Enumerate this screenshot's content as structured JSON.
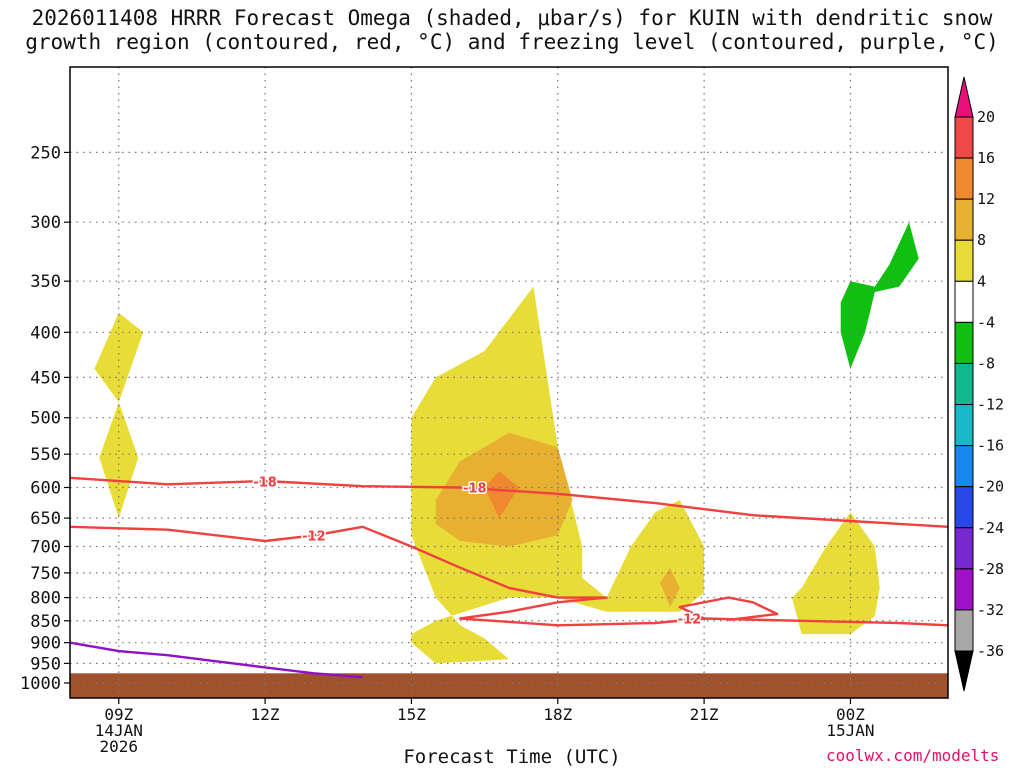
{
  "chart_data": {
    "type": "contour-cross-section",
    "title": {
      "line1": "2026011408 HRRR Forecast Omega (shaded, μbar/s) for KUIN with dendritic snow",
      "line2": "growth region (contoured, red, °C) and freezing level (contoured, purple, °C)"
    },
    "xlabel": "Forecast Time (UTC)",
    "credit": "coolwx.com/modelts",
    "x_ticks": [
      {
        "hour": 0,
        "label": "09Z",
        "sub1": "14JAN",
        "sub2": "2026"
      },
      {
        "hour": 3,
        "label": "12Z",
        "sub1": "",
        "sub2": ""
      },
      {
        "hour": 6,
        "label": "15Z",
        "sub1": "",
        "sub2": ""
      },
      {
        "hour": 9,
        "label": "18Z",
        "sub1": "",
        "sub2": ""
      },
      {
        "hour": 12,
        "label": "21Z",
        "sub1": "",
        "sub2": ""
      },
      {
        "hour": 15,
        "label": "00Z",
        "sub1": "15JAN",
        "sub2": ""
      }
    ],
    "x_range_hours": [
      -1,
      17
    ],
    "y_ticks": [
      250,
      300,
      350,
      400,
      450,
      500,
      550,
      600,
      650,
      700,
      750,
      800,
      850,
      900,
      950,
      1000
    ],
    "y_range_hPa": [
      200,
      1040
    ],
    "colorbar": {
      "levels": [
        "20",
        "16",
        "12",
        "8",
        "4",
        "-4",
        "-8",
        "-12",
        "-16",
        "-20",
        "-24",
        "-28",
        "-32",
        "-36"
      ],
      "colors": [
        "#e8107a",
        "#f04848",
        "#f08830",
        "#e8b030",
        "#e8dc38",
        "#ffffff",
        "#10c010",
        "#10b890",
        "#18b8c8",
        "#1888f0",
        "#2848e8",
        "#7828d0",
        "#a010c8",
        "#a8a8a8",
        "#000000"
      ]
    },
    "shaded_regions": [
      {
        "name": "omega-4-8",
        "value_range": "4 to 8",
        "color": "#e8dc38",
        "points": [
          [
            0,
            480
          ],
          [
            0.4,
            555
          ],
          [
            0,
            650
          ],
          [
            -0.4,
            555
          ]
        ]
      },
      {
        "name": "omega-4-8",
        "value_range": "4 to 8",
        "color": "#e8dc38",
        "points": [
          [
            -0.5,
            440
          ],
          [
            0,
            380
          ],
          [
            0.5,
            400
          ],
          [
            0,
            480
          ]
        ]
      },
      {
        "name": "omega-4-8",
        "value_range": "4 to 8",
        "color": "#e8dc38",
        "points": [
          [
            6,
            880
          ],
          [
            6.5,
            850
          ],
          [
            8,
            800
          ],
          [
            9,
            800
          ],
          [
            10,
            830
          ],
          [
            10.5,
            830
          ],
          [
            11.5,
            830
          ],
          [
            12,
            790
          ],
          [
            12,
            700
          ],
          [
            11.5,
            620
          ],
          [
            11,
            640
          ],
          [
            10.5,
            700
          ],
          [
            10,
            800
          ],
          [
            9.5,
            760
          ],
          [
            9.5,
            700
          ],
          [
            9,
            540
          ],
          [
            8.5,
            355
          ],
          [
            7.5,
            420
          ],
          [
            6.5,
            450
          ],
          [
            6,
            500
          ],
          [
            6,
            680
          ],
          [
            6.5,
            800
          ],
          [
            7,
            860
          ],
          [
            7.5,
            890
          ],
          [
            8,
            940
          ],
          [
            6.5,
            950
          ],
          [
            6,
            900
          ]
        ]
      },
      {
        "name": "omega-8-12",
        "value_range": "8 to 12",
        "color": "#e8b030",
        "points": [
          [
            6.5,
            620
          ],
          [
            7,
            560
          ],
          [
            8,
            520
          ],
          [
            9,
            540
          ],
          [
            9.3,
            620
          ],
          [
            9,
            680
          ],
          [
            8,
            700
          ],
          [
            7,
            690
          ],
          [
            6.5,
            660
          ]
        ]
      },
      {
        "name": "omega-12-16",
        "value_range": "12 to 16",
        "color": "#f08830",
        "points": [
          [
            7.5,
            600
          ],
          [
            7.8,
            575
          ],
          [
            8.2,
            600
          ],
          [
            7.8,
            650
          ]
        ]
      },
      {
        "name": "omega-8-12",
        "value_range": "8 to 12",
        "color": "#e8b030",
        "points": [
          [
            11.1,
            770
          ],
          [
            11.3,
            740
          ],
          [
            11.5,
            780
          ],
          [
            11.3,
            820
          ]
        ]
      },
      {
        "name": "omega-4-8",
        "value_range": "4 to 8",
        "color": "#e8dc38",
        "points": [
          [
            14,
            780
          ],
          [
            14.5,
            700
          ],
          [
            15,
            640
          ],
          [
            15.5,
            700
          ],
          [
            15.6,
            780
          ],
          [
            15.5,
            840
          ],
          [
            15,
            880
          ],
          [
            14,
            880
          ],
          [
            13.8,
            800
          ]
        ]
      },
      {
        "name": "omega-neg4-neg8",
        "value_range": "-4 to -8",
        "color": "#10c010",
        "points": [
          [
            15,
            350
          ],
          [
            15.5,
            355
          ],
          [
            15.8,
            335
          ],
          [
            16.2,
            300
          ],
          [
            16.4,
            330
          ],
          [
            16,
            355
          ],
          [
            15.5,
            360
          ],
          [
            15.3,
            400
          ],
          [
            15,
            440
          ],
          [
            14.8,
            400
          ],
          [
            14.8,
            370
          ]
        ]
      }
    ],
    "contours": [
      {
        "name": "isotherm-minus18",
        "label": "-18",
        "color": "#f04040",
        "points": [
          [
            -1,
            585
          ],
          [
            1,
            595
          ],
          [
            3,
            590
          ],
          [
            5,
            598
          ],
          [
            7,
            600
          ],
          [
            9,
            610
          ],
          [
            11,
            625
          ],
          [
            13,
            645
          ],
          [
            15,
            655
          ],
          [
            17,
            665
          ]
        ]
      },
      {
        "name": "isotherm-minus12",
        "label": "-12",
        "color": "#f04040",
        "points": [
          [
            -1,
            665
          ],
          [
            1,
            670
          ],
          [
            3,
            690
          ],
          [
            4,
            680
          ],
          [
            5,
            665
          ],
          [
            6,
            700
          ],
          [
            7,
            740
          ],
          [
            8,
            780
          ],
          [
            9,
            800
          ],
          [
            10,
            800
          ],
          [
            9,
            810
          ],
          [
            8,
            830
          ],
          [
            7,
            845
          ],
          [
            9,
            860
          ],
          [
            11,
            855
          ],
          [
            12,
            845
          ],
          [
            14,
            850
          ],
          [
            16,
            855
          ],
          [
            17,
            860
          ]
        ]
      },
      {
        "name": "isotherm-minus12-loop",
        "label": "",
        "color": "#f04040",
        "points": [
          [
            12,
            845
          ],
          [
            11.5,
            820
          ],
          [
            12.5,
            800
          ],
          [
            13,
            810
          ],
          [
            13.5,
            835
          ],
          [
            12.5,
            848
          ]
        ]
      },
      {
        "name": "freezing-level",
        "label": "",
        "color": "#9010c8",
        "points": [
          [
            -1,
            900
          ],
          [
            0,
            920
          ],
          [
            1,
            930
          ],
          [
            2,
            945
          ],
          [
            3,
            960
          ],
          [
            4,
            975
          ],
          [
            5,
            985
          ]
        ]
      }
    ],
    "ground": {
      "color": "#a0522d",
      "from_hPa": 975
    }
  }
}
